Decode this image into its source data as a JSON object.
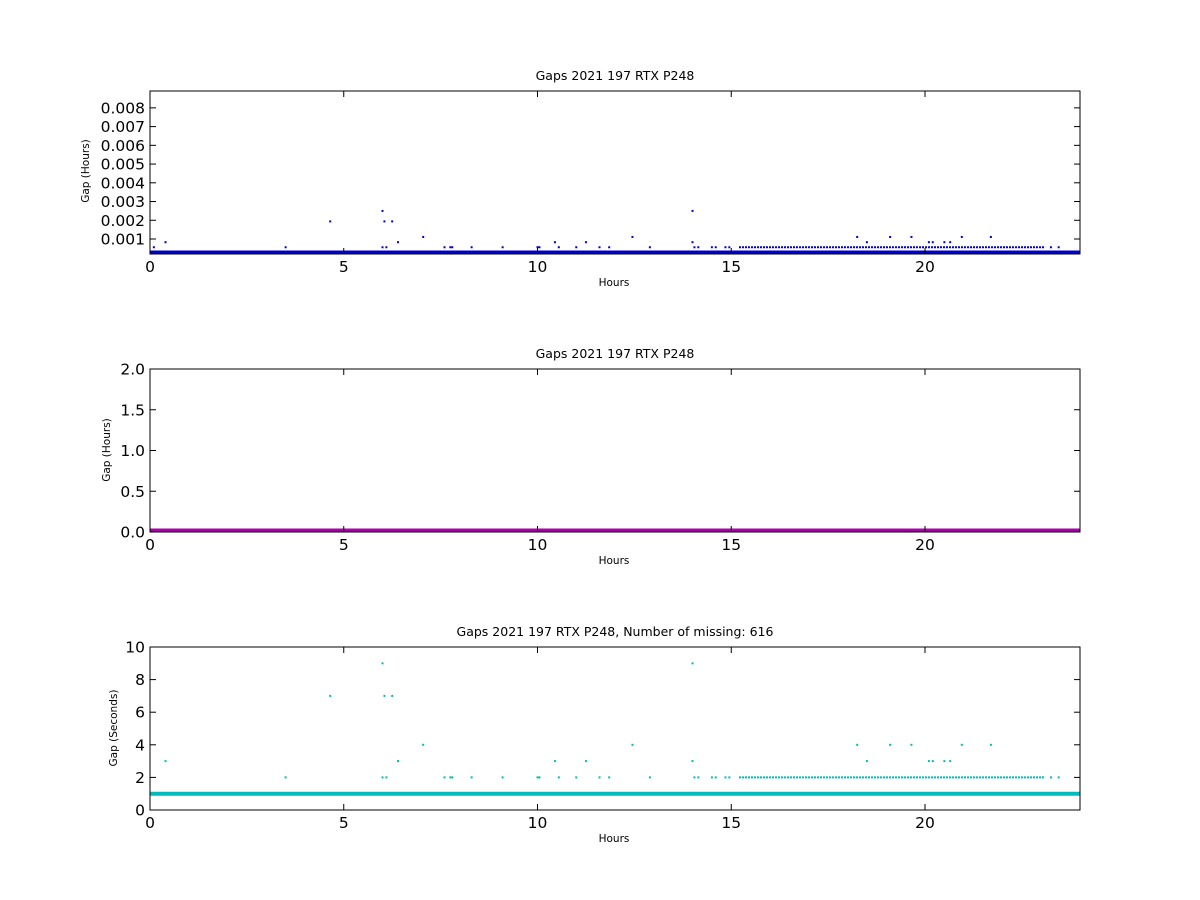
{
  "chart_data": [
    {
      "type": "scatter",
      "title": "Gaps 2021 197 RTX  P248",
      "xlabel": "Hours",
      "ylabel": "Gap (Hours)",
      "xlim": [
        0,
        24
      ],
      "ylim": [
        0.0002,
        0.0089
      ],
      "x_ticks": [
        0,
        5,
        10,
        15,
        20
      ],
      "y_ticks": [
        0.001,
        0.002,
        0.003,
        0.004,
        0.005,
        0.006,
        0.007,
        0.008
      ],
      "x_tick_labels": [
        "0",
        "5",
        "10",
        "15",
        "20"
      ],
      "y_tick_labels": [
        "0.001",
        "0.002",
        "0.003",
        "0.004",
        "0.005",
        "0.006",
        "0.007",
        "0.008"
      ],
      "color": "#0000cc",
      "baseline": {
        "y": 0.00028,
        "x_range": [
          0,
          24
        ]
      },
      "dense_band": {
        "y": 0.00056,
        "x_range": [
          15.2,
          23.1
        ]
      },
      "points": [
        [
          0.1,
          0.00056
        ],
        [
          0.4,
          0.00083
        ],
        [
          3.5,
          0.00056
        ],
        [
          4.65,
          0.00194
        ],
        [
          6.0,
          0.0025
        ],
        [
          6.05,
          0.00194
        ],
        [
          6.0,
          0.00056
        ],
        [
          6.1,
          0.00056
        ],
        [
          6.25,
          0.00194
        ],
        [
          6.4,
          0.00083
        ],
        [
          7.05,
          0.00111
        ],
        [
          7.6,
          0.00056
        ],
        [
          7.75,
          0.00056
        ],
        [
          7.8,
          0.00056
        ],
        [
          8.3,
          0.00056
        ],
        [
          9.1,
          0.00056
        ],
        [
          10.0,
          0.00056
        ],
        [
          10.05,
          0.00056
        ],
        [
          10.45,
          0.00083
        ],
        [
          10.55,
          0.00056
        ],
        [
          11.0,
          0.00056
        ],
        [
          11.25,
          0.00083
        ],
        [
          11.6,
          0.00056
        ],
        [
          11.85,
          0.00056
        ],
        [
          12.45,
          0.00111
        ],
        [
          12.9,
          0.00056
        ],
        [
          14.0,
          0.0025
        ],
        [
          14.0,
          0.00083
        ],
        [
          14.05,
          0.00056
        ],
        [
          14.15,
          0.00056
        ],
        [
          14.5,
          0.00056
        ],
        [
          14.6,
          0.00056
        ],
        [
          14.85,
          0.00056
        ],
        [
          14.95,
          0.00056
        ],
        [
          18.25,
          0.00111
        ],
        [
          18.5,
          0.00083
        ],
        [
          19.1,
          0.00111
        ],
        [
          19.65,
          0.00111
        ],
        [
          20.1,
          0.00083
        ],
        [
          20.2,
          0.00083
        ],
        [
          20.5,
          0.00083
        ],
        [
          20.65,
          0.00083
        ],
        [
          20.95,
          0.00111
        ],
        [
          21.7,
          0.00111
        ],
        [
          23.25,
          0.00056
        ],
        [
          23.45,
          0.00056
        ]
      ]
    },
    {
      "type": "scatter",
      "title": "Gaps 2021 197 RTX  P248",
      "xlabel": "Hours",
      "ylabel": "Gap (Hours)",
      "xlim": [
        0,
        24
      ],
      "ylim": [
        0,
        2
      ],
      "x_ticks": [
        0,
        5,
        10,
        15,
        20
      ],
      "y_ticks": [
        0.0,
        0.5,
        1.0,
        1.5,
        2.0
      ],
      "x_tick_labels": [
        "0",
        "5",
        "10",
        "15",
        "20"
      ],
      "y_tick_labels": [
        "0.0",
        "0.5",
        "1.0",
        "1.5",
        "2.0"
      ],
      "color": "#aa00aa",
      "baseline": {
        "y": 0.0,
        "x_range": [
          0,
          24
        ]
      },
      "points": []
    },
    {
      "type": "scatter",
      "title": "Gaps 2021 197 RTX  P248, Number of missing: 616",
      "xlabel": "Hours",
      "ylabel": "Gap (Seconds)",
      "xlim": [
        0,
        24
      ],
      "ylim": [
        0,
        10
      ],
      "x_ticks": [
        0,
        5,
        10,
        15,
        20
      ],
      "y_ticks": [
        0,
        2,
        4,
        6,
        8,
        10
      ],
      "x_tick_labels": [
        "0",
        "5",
        "10",
        "15",
        "20"
      ],
      "y_tick_labels": [
        "0",
        "2",
        "4",
        "6",
        "8",
        "10"
      ],
      "color": "#00bbbb",
      "baseline": {
        "y": 1,
        "x_range": [
          0,
          24
        ]
      },
      "dense_band": {
        "y": 2,
        "x_range": [
          15.2,
          23.1
        ]
      },
      "points": [
        [
          0.4,
          3
        ],
        [
          3.5,
          2
        ],
        [
          4.65,
          7
        ],
        [
          6.0,
          9
        ],
        [
          6.05,
          7
        ],
        [
          6.0,
          2
        ],
        [
          6.1,
          2
        ],
        [
          6.25,
          7
        ],
        [
          6.4,
          3
        ],
        [
          7.05,
          4
        ],
        [
          7.6,
          2
        ],
        [
          7.75,
          2
        ],
        [
          7.8,
          2
        ],
        [
          8.3,
          2
        ],
        [
          9.1,
          2
        ],
        [
          10.0,
          2
        ],
        [
          10.05,
          2
        ],
        [
          10.45,
          3
        ],
        [
          10.55,
          2
        ],
        [
          11.0,
          2
        ],
        [
          11.25,
          3
        ],
        [
          11.6,
          2
        ],
        [
          11.85,
          2
        ],
        [
          12.45,
          4
        ],
        [
          12.9,
          2
        ],
        [
          14.0,
          9
        ],
        [
          14.0,
          3
        ],
        [
          14.05,
          2
        ],
        [
          14.15,
          2
        ],
        [
          14.5,
          2
        ],
        [
          14.6,
          2
        ],
        [
          14.85,
          2
        ],
        [
          14.95,
          2
        ],
        [
          18.25,
          4
        ],
        [
          18.5,
          3
        ],
        [
          19.1,
          4
        ],
        [
          19.65,
          4
        ],
        [
          20.1,
          3
        ],
        [
          20.2,
          3
        ],
        [
          20.5,
          3
        ],
        [
          20.65,
          3
        ],
        [
          20.95,
          4
        ],
        [
          21.7,
          4
        ],
        [
          23.25,
          2
        ],
        [
          23.45,
          2
        ]
      ]
    }
  ]
}
